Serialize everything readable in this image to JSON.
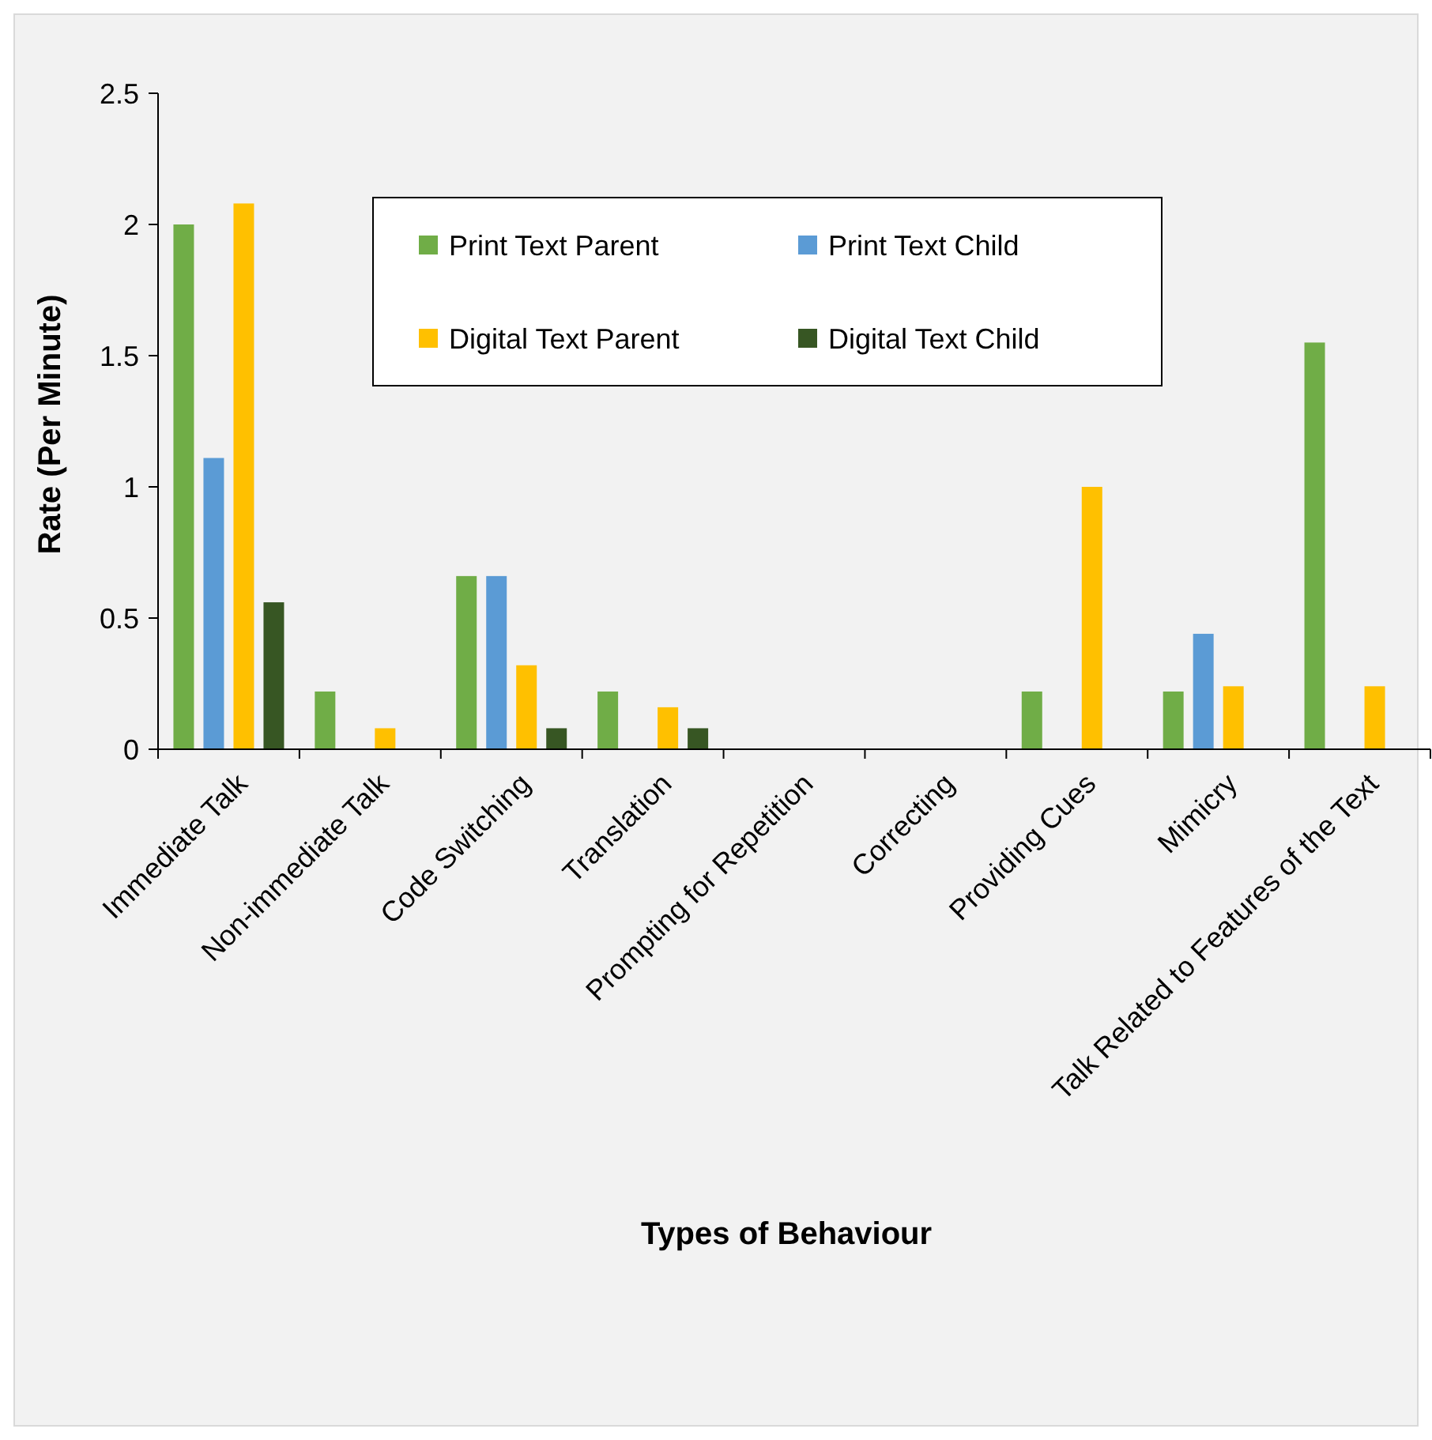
{
  "chart_data": {
    "type": "bar",
    "xlabel": "Types of Behaviour",
    "ylabel": "Rate (Per Minute)",
    "categories": [
      "Immediate Talk",
      "Non-immediate Talk",
      "Code Switching",
      "Translation",
      "Prompting for Repetition",
      "Correcting",
      "Providing Cues",
      "Mimicry",
      "Talk Related to Features of the Text"
    ],
    "series": [
      {
        "name": "Print Text Parent",
        "color": "#70ad47",
        "values": [
          2.0,
          0.22,
          0.66,
          0.22,
          0,
          0,
          0.22,
          0.22,
          1.55
        ]
      },
      {
        "name": "Print Text Child",
        "color": "#5b9bd5",
        "values": [
          1.11,
          0,
          0.66,
          0,
          0,
          0,
          0,
          0.44,
          0
        ]
      },
      {
        "name": "Digital Text Parent",
        "color": "#ffc000",
        "values": [
          2.08,
          0.08,
          0.32,
          0.16,
          0,
          0,
          1.0,
          0.24,
          0.24
        ]
      },
      {
        "name": "Digital Text Child",
        "color": "#375623",
        "values": [
          0.56,
          0,
          0.08,
          0.08,
          0,
          0,
          0,
          0,
          0
        ]
      }
    ],
    "ylim": [
      0,
      2.5
    ],
    "yticks": [
      0,
      0.5,
      1,
      1.5,
      2,
      2.5
    ],
    "grid": false,
    "legend": "top"
  }
}
